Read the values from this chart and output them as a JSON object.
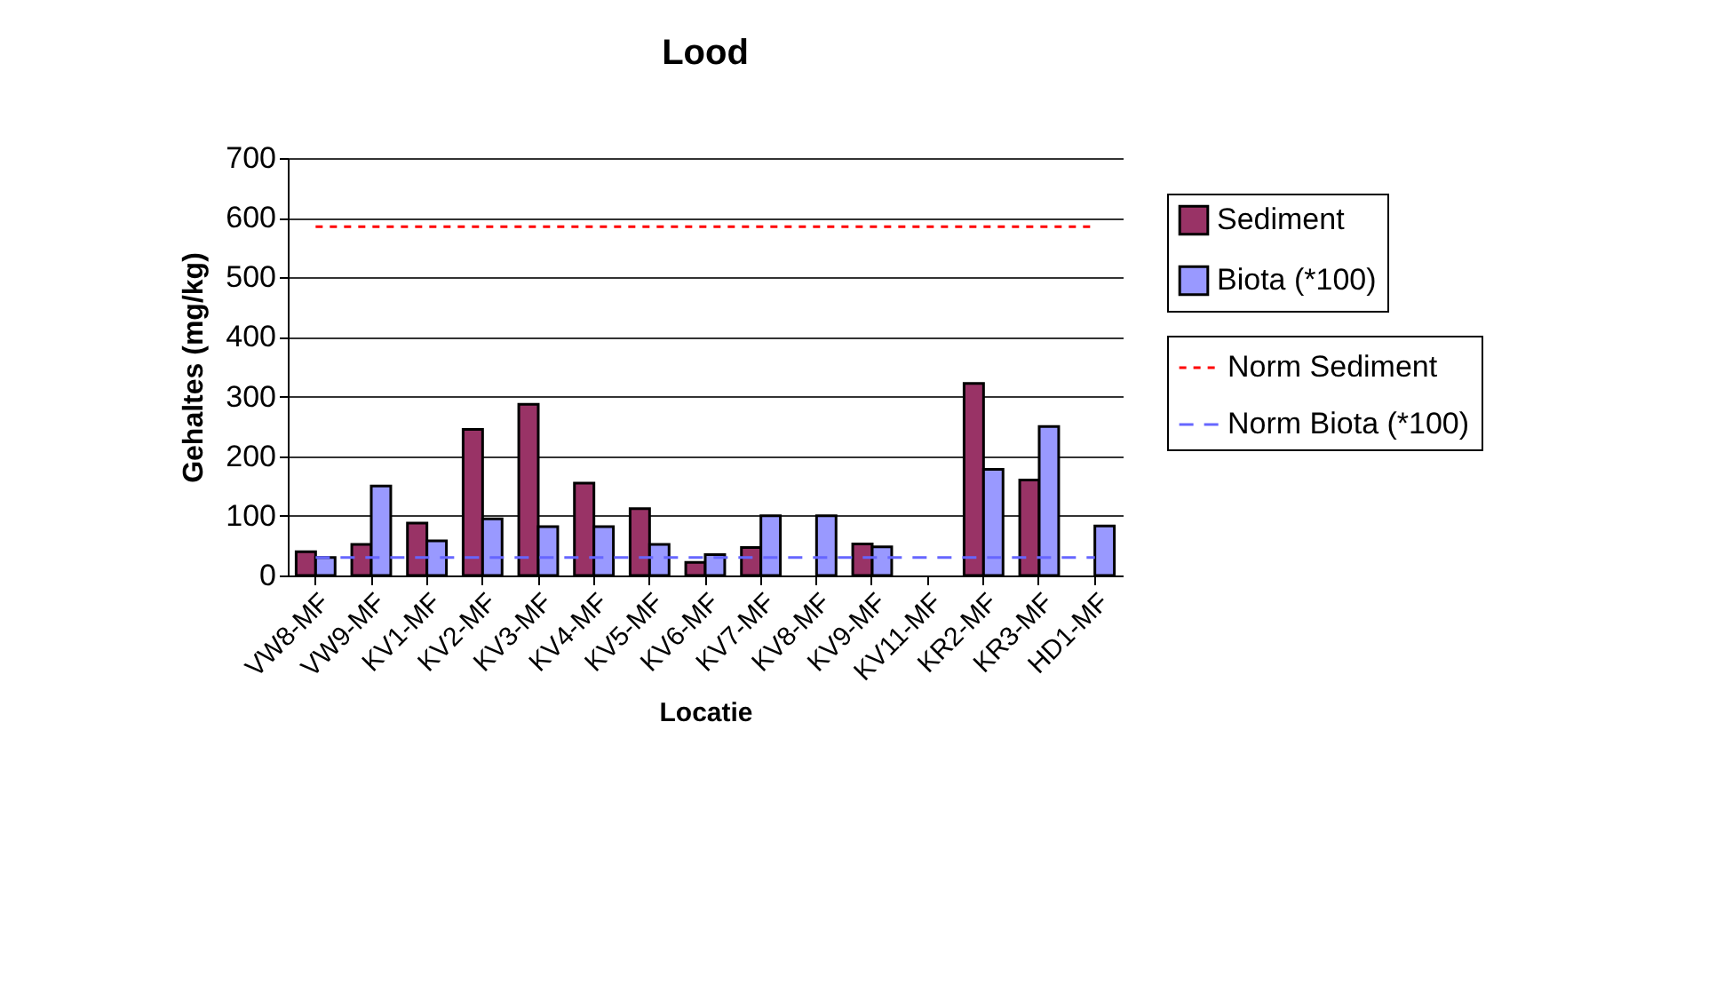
{
  "chart_data": {
    "type": "bar",
    "title": "Lood",
    "xlabel": "Locatie",
    "ylabel": "Gehaltes (mg/kg)",
    "categories": [
      "VW8-MF",
      "VW9-MF",
      "KV1-MF",
      "KV2-MF",
      "KV3-MF",
      "KV4-MF",
      "KV5-MF",
      "KV6-MF",
      "KV7-MF",
      "KV8-MF",
      "KV9-MF",
      "KV11-MF",
      "KR2-MF",
      "KR3-MF",
      "HD1-MF"
    ],
    "series": [
      {
        "name": "Sediment",
        "color": "#993366",
        "values": [
          40,
          52,
          88,
          245,
          287,
          155,
          112,
          22,
          47,
          null,
          53,
          null,
          322,
          160,
          null
        ]
      },
      {
        "name": "Biota (*100)",
        "color": "#9999ff",
        "values": [
          30,
          150,
          58,
          95,
          82,
          82,
          52,
          35,
          100,
          100,
          48,
          null,
          178,
          250,
          83
        ]
      },
      {
        "name": "Norm Sediment",
        "type": "line",
        "line_style": "dotted",
        "color": "#ff0000",
        "values": [
          585,
          585,
          585,
          585,
          585,
          585,
          585,
          585,
          585,
          585,
          585,
          585,
          585,
          585,
          585
        ]
      },
      {
        "name": "Norm Biota (*100)",
        "type": "line",
        "line_style": "dashed",
        "color": "#6666ff",
        "values": [
          30,
          30,
          30,
          30,
          30,
          30,
          30,
          30,
          30,
          30,
          30,
          30,
          30,
          30,
          30
        ]
      }
    ],
    "ylim": [
      0,
      700
    ],
    "yticks": [
      0,
      100,
      200,
      300,
      400,
      500,
      600,
      700
    ],
    "grid": "y",
    "legend": "right"
  }
}
